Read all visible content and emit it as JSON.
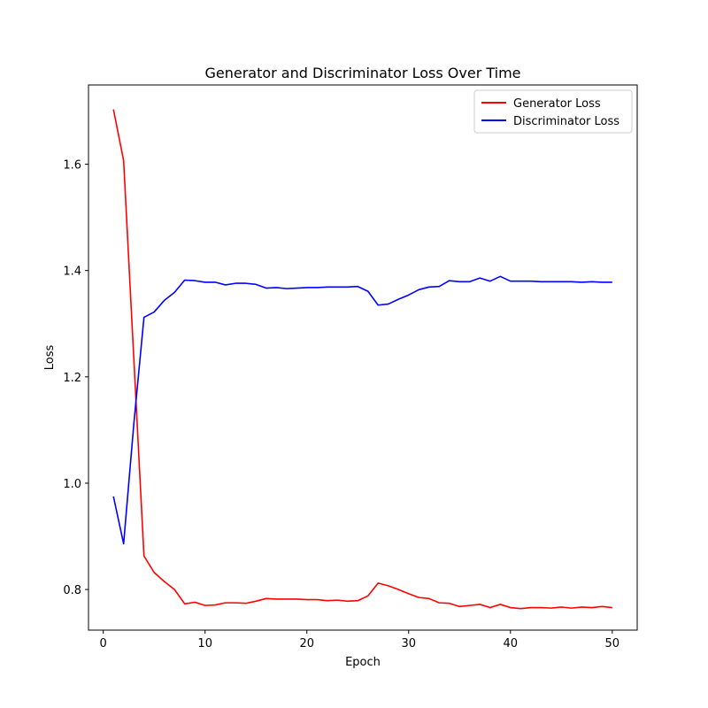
{
  "chart_data": {
    "type": "line",
    "title": "Generator and Discriminator Loss Over Time",
    "xlabel": "Epoch",
    "ylabel": "Loss",
    "xlim": [
      -1.45,
      52.45
    ],
    "ylim": [
      0.7236,
      1.7491
    ],
    "xticks": [
      0,
      10,
      20,
      30,
      40,
      50
    ],
    "yticks": [
      0.8,
      1.0,
      1.2,
      1.4,
      1.6
    ],
    "grid": false,
    "legend_position": "top-right",
    "x": [
      1,
      2,
      3,
      4,
      5,
      6,
      7,
      8,
      9,
      10,
      11,
      12,
      13,
      14,
      15,
      16,
      17,
      18,
      19,
      20,
      21,
      22,
      23,
      24,
      25,
      26,
      27,
      28,
      29,
      30,
      31,
      32,
      33,
      34,
      35,
      36,
      37,
      38,
      39,
      40,
      41,
      42,
      43,
      44,
      45,
      46,
      47,
      48,
      49,
      50
    ],
    "series": [
      {
        "name": "Generator Loss",
        "color": "#ff0000",
        "values": [
          1.703,
          1.607,
          1.235,
          0.863,
          0.832,
          0.815,
          0.8,
          0.773,
          0.776,
          0.77,
          0.771,
          0.775,
          0.775,
          0.774,
          0.778,
          0.783,
          0.782,
          0.782,
          0.782,
          0.781,
          0.781,
          0.779,
          0.78,
          0.778,
          0.779,
          0.788,
          0.812,
          0.807,
          0.8,
          0.792,
          0.785,
          0.783,
          0.775,
          0.774,
          0.768,
          0.77,
          0.772,
          0.766,
          0.772,
          0.766,
          0.764,
          0.766,
          0.766,
          0.765,
          0.767,
          0.765,
          0.767,
          0.766,
          0.768,
          0.766
        ]
      },
      {
        "name": "Discriminator Loss",
        "color": "#0000ff",
        "values": [
          0.975,
          0.886,
          1.111,
          1.312,
          1.322,
          1.344,
          1.359,
          1.382,
          1.381,
          1.378,
          1.378,
          1.373,
          1.376,
          1.376,
          1.374,
          1.367,
          1.368,
          1.366,
          1.367,
          1.368,
          1.368,
          1.369,
          1.369,
          1.369,
          1.37,
          1.361,
          1.335,
          1.337,
          1.346,
          1.354,
          1.364,
          1.369,
          1.37,
          1.381,
          1.379,
          1.379,
          1.386,
          1.38,
          1.389,
          1.38,
          1.38,
          1.38,
          1.379,
          1.379,
          1.379,
          1.379,
          1.378,
          1.379,
          1.378,
          1.378
        ]
      }
    ]
  }
}
